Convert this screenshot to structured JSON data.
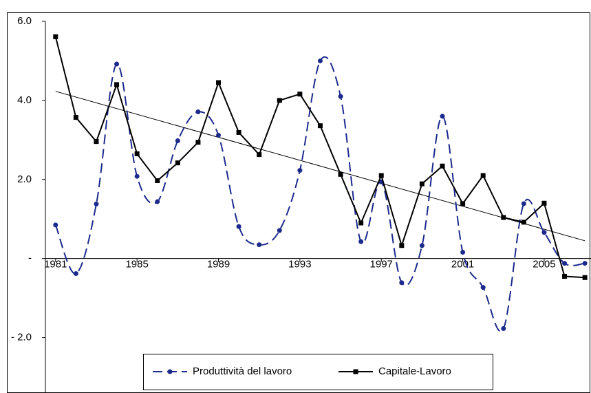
{
  "chart_data": {
    "type": "line",
    "x": [
      1981,
      1982,
      1983,
      1984,
      1985,
      1986,
      1987,
      1988,
      1989,
      1990,
      1991,
      1992,
      1993,
      1994,
      1995,
      1996,
      1997,
      1998,
      1999,
      2000,
      2001,
      2002,
      2003,
      2004,
      2005,
      2006,
      2007
    ],
    "series": [
      {
        "name": "Produttività del lavoro",
        "color": "#1c2a8c",
        "dash": true,
        "marker": "circle",
        "smooth": true,
        "values": [
          0.85,
          -0.38,
          1.38,
          4.92,
          2.08,
          1.44,
          2.98,
          3.71,
          3.12,
          0.81,
          0.35,
          0.71,
          2.23,
          5.0,
          4.1,
          0.43,
          1.94,
          -0.61,
          0.33,
          3.6,
          0.16,
          -0.73,
          -1.77,
          1.39,
          0.66,
          -0.12,
          -0.12
        ]
      },
      {
        "name": "Capitale-Lavoro",
        "color": "#000000",
        "dash": false,
        "marker": "square",
        "smooth": false,
        "values": [
          5.61,
          3.57,
          2.96,
          4.4,
          2.65,
          1.97,
          2.42,
          2.94,
          4.45,
          3.19,
          2.63,
          4.0,
          4.16,
          3.36,
          2.13,
          0.9,
          2.1,
          0.33,
          1.89,
          2.34,
          1.39,
          2.1,
          1.04,
          0.92,
          1.4,
          -0.45,
          -0.48
        ]
      }
    ],
    "trendline": {
      "x": [
        1981,
        2007
      ],
      "values": [
        4.23,
        0.45
      ],
      "color": "#000000"
    },
    "xlim": [
      1980.5,
      2007.3
    ],
    "xticks": [
      1981,
      1985,
      1989,
      1993,
      1997,
      2001,
      2005
    ],
    "ylim": [
      -3.4,
      6.0
    ],
    "yticks": [
      {
        "value": -2,
        "label": "- 2.0"
      },
      {
        "value": 0,
        "label": "-"
      },
      {
        "value": 2,
        "label": "2.0"
      },
      {
        "value": 4,
        "label": "4.0"
      },
      {
        "value": 6,
        "label": "6.0"
      }
    ],
    "grid": false,
    "legend": "bottom"
  }
}
